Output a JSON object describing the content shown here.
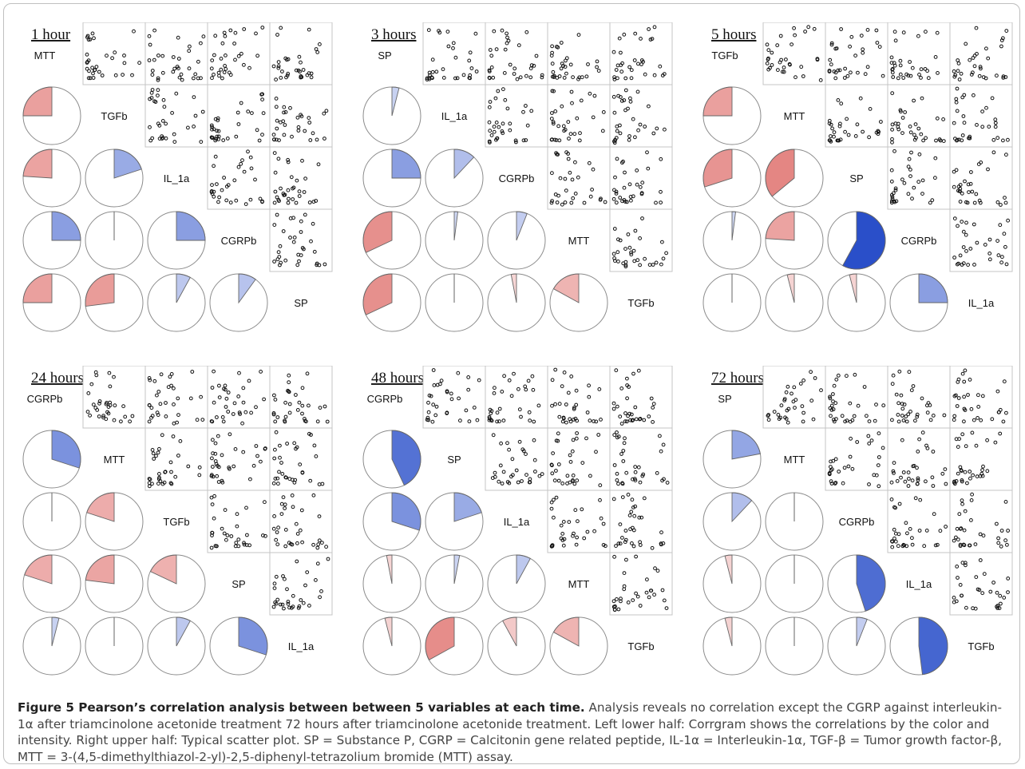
{
  "chart_data": [
    {
      "type": "corrgram",
      "title": "1 hour",
      "variables": [
        "MTT",
        "TGFb",
        "IL_1a",
        "CGRPb",
        "SP"
      ],
      "correlations": [
        {
          "row": "TGFb",
          "col": "MTT",
          "r": -0.25
        },
        {
          "row": "IL_1a",
          "col": "MTT",
          "r": -0.24
        },
        {
          "row": "IL_1a",
          "col": "TGFb",
          "r": 0.2
        },
        {
          "row": "CGRPb",
          "col": "MTT",
          "r": 0.25
        },
        {
          "row": "CGRPb",
          "col": "TGFb",
          "r": 0.0
        },
        {
          "row": "CGRPb",
          "col": "IL_1a",
          "r": 0.25
        },
        {
          "row": "SP",
          "col": "MTT",
          "r": -0.25
        },
        {
          "row": "SP",
          "col": "TGFb",
          "r": -0.27
        },
        {
          "row": "SP",
          "col": "IL_1a",
          "r": 0.08
        },
        {
          "row": "SP",
          "col": "CGRPb",
          "r": 0.1
        }
      ]
    },
    {
      "type": "corrgram",
      "title": "3 hours",
      "variables": [
        "SP",
        "IL_1a",
        "CGRPb",
        "MTT",
        "TGFb"
      ],
      "correlations": [
        {
          "row": "IL_1a",
          "col": "SP",
          "r": 0.04
        },
        {
          "row": "CGRPb",
          "col": "SP",
          "r": 0.25
        },
        {
          "row": "CGRPb",
          "col": "IL_1a",
          "r": 0.12
        },
        {
          "row": "MTT",
          "col": "SP",
          "r": -0.32
        },
        {
          "row": "MTT",
          "col": "IL_1a",
          "r": 0.02
        },
        {
          "row": "MTT",
          "col": "CGRPb",
          "r": 0.06
        },
        {
          "row": "TGFb",
          "col": "SP",
          "r": -0.32
        },
        {
          "row": "TGFb",
          "col": "IL_1a",
          "r": 0.0
        },
        {
          "row": "TGFb",
          "col": "CGRPb",
          "r": -0.03
        },
        {
          "row": "TGFb",
          "col": "MTT",
          "r": -0.17
        }
      ]
    },
    {
      "type": "corrgram",
      "title": "5 hours",
      "variables": [
        "TGFb",
        "MTT",
        "SP",
        "CGRPb",
        "IL_1a"
      ],
      "correlations": [
        {
          "row": "MTT",
          "col": "TGFb",
          "r": -0.25
        },
        {
          "row": "SP",
          "col": "TGFb",
          "r": -0.3
        },
        {
          "row": "SP",
          "col": "MTT",
          "r": -0.36
        },
        {
          "row": "CGRPb",
          "col": "TGFb",
          "r": 0.02
        },
        {
          "row": "CGRPb",
          "col": "MTT",
          "r": -0.24
        },
        {
          "row": "CGRPb",
          "col": "SP",
          "r": 0.58
        },
        {
          "row": "IL_1a",
          "col": "TGFb",
          "r": 0.0
        },
        {
          "row": "IL_1a",
          "col": "MTT",
          "r": -0.04
        },
        {
          "row": "IL_1a",
          "col": "SP",
          "r": -0.04
        },
        {
          "row": "IL_1a",
          "col": "CGRPb",
          "r": 0.25
        }
      ]
    },
    {
      "type": "corrgram",
      "title": "24 hours",
      "variables": [
        "CGRPb",
        "MTT",
        "TGFb",
        "SP",
        "IL_1a"
      ],
      "correlations": [
        {
          "row": "MTT",
          "col": "CGRPb",
          "r": 0.3
        },
        {
          "row": "TGFb",
          "col": "CGRPb",
          "r": 0.0
        },
        {
          "row": "TGFb",
          "col": "MTT",
          "r": -0.2
        },
        {
          "row": "SP",
          "col": "CGRPb",
          "r": -0.2
        },
        {
          "row": "SP",
          "col": "MTT",
          "r": -0.23
        },
        {
          "row": "SP",
          "col": "TGFb",
          "r": -0.18
        },
        {
          "row": "IL_1a",
          "col": "CGRPb",
          "r": 0.04
        },
        {
          "row": "IL_1a",
          "col": "MTT",
          "r": 0.0
        },
        {
          "row": "IL_1a",
          "col": "TGFb",
          "r": 0.08
        },
        {
          "row": "IL_1a",
          "col": "SP",
          "r": 0.3
        }
      ]
    },
    {
      "type": "corrgram",
      "title": "48 hours",
      "variables": [
        "CGRPb",
        "SP",
        "IL_1a",
        "MTT",
        "TGFb"
      ],
      "correlations": [
        {
          "row": "SP",
          "col": "CGRPb",
          "r": 0.43
        },
        {
          "row": "IL_1a",
          "col": "CGRPb",
          "r": 0.3
        },
        {
          "row": "IL_1a",
          "col": "SP",
          "r": 0.2
        },
        {
          "row": "MTT",
          "col": "CGRPb",
          "r": -0.03
        },
        {
          "row": "MTT",
          "col": "SP",
          "r": 0.03
        },
        {
          "row": "MTT",
          "col": "IL_1a",
          "r": 0.08
        },
        {
          "row": "TGFb",
          "col": "CGRPb",
          "r": -0.04
        },
        {
          "row": "TGFb",
          "col": "SP",
          "r": -0.33
        },
        {
          "row": "TGFb",
          "col": "IL_1a",
          "r": -0.08
        },
        {
          "row": "TGFb",
          "col": "MTT",
          "r": -0.17
        }
      ]
    },
    {
      "type": "corrgram",
      "title": "72 hours",
      "variables": [
        "SP",
        "MTT",
        "CGRPb",
        "IL_1a",
        "TGFb"
      ],
      "correlations": [
        {
          "row": "MTT",
          "col": "SP",
          "r": 0.22
        },
        {
          "row": "CGRPb",
          "col": "SP",
          "r": 0.12
        },
        {
          "row": "CGRPb",
          "col": "MTT",
          "r": 0.0
        },
        {
          "row": "IL_1a",
          "col": "SP",
          "r": -0.04
        },
        {
          "row": "IL_1a",
          "col": "MTT",
          "r": 0.0
        },
        {
          "row": "IL_1a",
          "col": "CGRPb",
          "r": 0.45
        },
        {
          "row": "TGFb",
          "col": "SP",
          "r": -0.04
        },
        {
          "row": "TGFb",
          "col": "MTT",
          "r": 0.0
        },
        {
          "row": "TGFb",
          "col": "CGRPb",
          "r": 0.06
        },
        {
          "row": "TGFb",
          "col": "IL_1a",
          "r": 0.48
        }
      ]
    }
  ],
  "legend": {
    "positive_color": "#2a4fc9",
    "negative_color": "#d9534f",
    "neutral_color": "#ffffff"
  },
  "caption": {
    "title": "Figure 5 Pearson’s correlation analysis between between 5 variables at each time.",
    "body": " Analysis reveals no correlation except the CGRP against interleukin-1α after triamcinolone acetonide treatment 72 hours after triamcinolone acetonide treatment. Left lower half: Corrgram shows the correlations by the color and intensity. Right upper half: Typical scatter plot. SP = Substance P, CGRP = Calcitonin gene related peptide, IL-1α = Interleukin-1α, TGF-β = Tumor growth factor-β, MTT = 3-(4,5-dimethylthiazol-2-yl)-2,5-diphenyl-tetrazolium bromide (MTT) assay."
  }
}
